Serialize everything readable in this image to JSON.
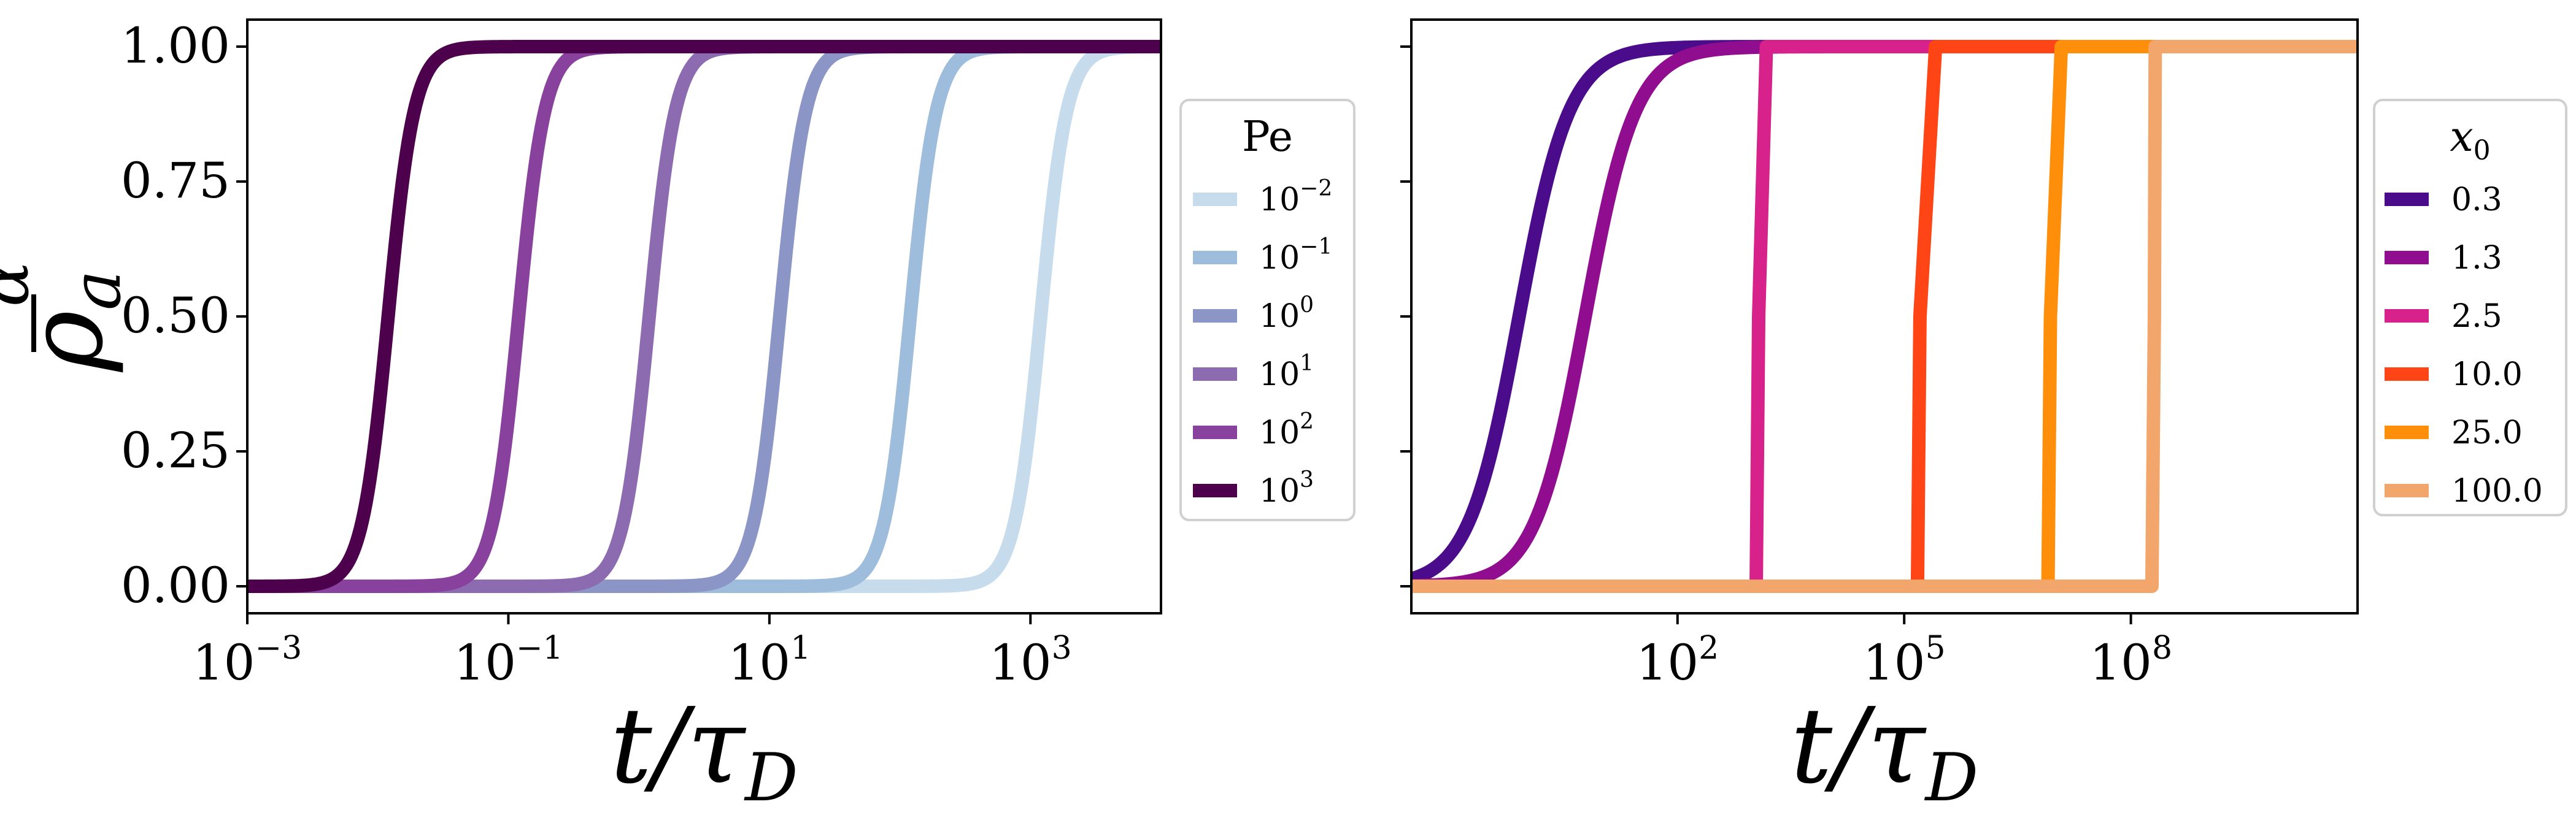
{
  "chart_data": [
    {
      "type": "line",
      "xscale": "log",
      "xlim": [
        0.001,
        10000
      ],
      "ylim": [
        -0.05,
        1.05
      ],
      "xlabel": "t/τ_D",
      "xlabel_main": "t/τ",
      "xlabel_sub": "D",
      "ylabel": "ρ̄_a^α",
      "ylabel_main": "ρ",
      "ylabel_sub": "a",
      "ylabel_sup": "α",
      "xticks": [
        {
          "value": 0.001,
          "base": "10",
          "exp": "−3"
        },
        {
          "value": 0.1,
          "base": "10",
          "exp": "−1"
        },
        {
          "value": 10,
          "base": "10",
          "exp": "1"
        },
        {
          "value": 1000,
          "base": "10",
          "exp": "3"
        }
      ],
      "yticks": [
        {
          "value": 0.0,
          "label": "0.00"
        },
        {
          "value": 0.25,
          "label": "0.25"
        },
        {
          "value": 0.5,
          "label": "0.50"
        },
        {
          "value": 0.75,
          "label": "0.75"
        },
        {
          "value": 1.0,
          "label": "1.00"
        }
      ],
      "legend": {
        "title": "Pe",
        "location": "outside-right"
      },
      "series": [
        {
          "name": "10^-2",
          "base": "10",
          "exp": "−2",
          "color": "#c6dbec",
          "midpoint": 1200,
          "steep": 10
        },
        {
          "name": "10^-1",
          "base": "10",
          "exp": "−1",
          "color": "#9ebcdb",
          "midpoint": 120,
          "steep": 10
        },
        {
          "name": "10^0",
          "base": "10",
          "exp": "0",
          "color": "#8c96c6",
          "midpoint": 12,
          "steep": 10
        },
        {
          "name": "10^1",
          "base": "10",
          "exp": "1",
          "color": "#8c6bb1",
          "midpoint": 1.2,
          "steep": 10
        },
        {
          "name": "10^2",
          "base": "10",
          "exp": "2",
          "color": "#88419d",
          "midpoint": 0.12,
          "steep": 10
        },
        {
          "name": "10^3",
          "base": "10",
          "exp": "3",
          "color": "#4d004b",
          "midpoint": 0.012,
          "steep": 10
        }
      ]
    },
    {
      "type": "line",
      "xscale": "log",
      "xlim": [
        0.03,
        100000000000
      ],
      "ylim": [
        -0.05,
        1.05
      ],
      "xlabel": "t/τ_D",
      "xlabel_main": "t/τ",
      "xlabel_sub": "D",
      "ylabel": "",
      "xticks": [
        {
          "value": 100,
          "base": "10",
          "exp": "2"
        },
        {
          "value": 100000,
          "base": "10",
          "exp": "5"
        },
        {
          "value": 100000000,
          "base": "10",
          "exp": "8"
        }
      ],
      "yticks": [
        {
          "value": 0.0,
          "label": ""
        },
        {
          "value": 0.25,
          "label": ""
        },
        {
          "value": 0.5,
          "label": ""
        },
        {
          "value": 0.75,
          "label": ""
        },
        {
          "value": 1.0,
          "label": ""
        }
      ],
      "legend": {
        "title": "x_0",
        "title_main": "x",
        "title_sub": "0",
        "location": "outside-right"
      },
      "series": [
        {
          "name": "0.3",
          "color": "#4b0c8b",
          "kind": "smooth",
          "midpoint": 0.8,
          "steep": 3.0
        },
        {
          "name": "1.3",
          "color": "#900d8f",
          "kind": "smooth",
          "midpoint": 6,
          "steep": 3.0
        },
        {
          "name": "2.5",
          "color": "#d6228a",
          "kind": "step",
          "step_start": 1100,
          "step_end": 1500
        },
        {
          "name": "10.0",
          "color": "#ff4515",
          "kind": "step",
          "step_start": 150000,
          "step_end": 260000
        },
        {
          "name": "25.0",
          "color": "#ff8f0b",
          "kind": "step",
          "step_start": 8000000,
          "step_end": 12000000
        },
        {
          "name": "100.0",
          "color": "#f3a66c",
          "kind": "step",
          "step_start": 190000000,
          "step_end": 210000000
        }
      ]
    }
  ]
}
